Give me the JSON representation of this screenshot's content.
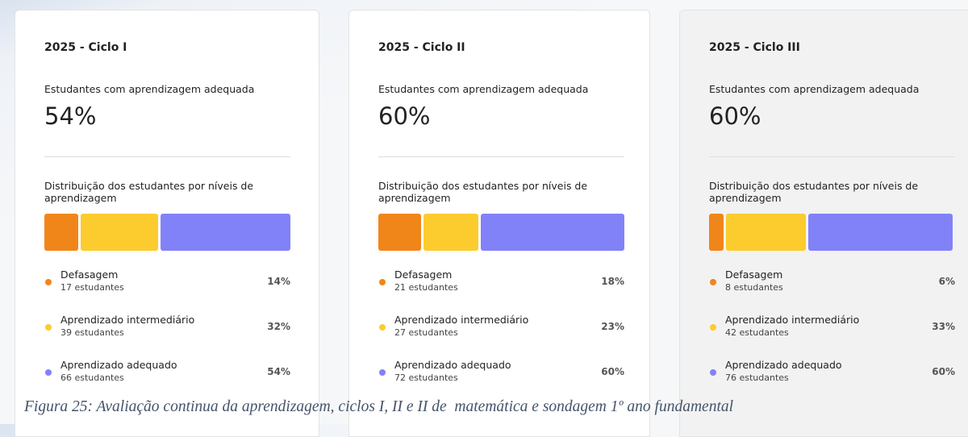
{
  "cards": [
    {
      "title": "2025 - Ciclo I",
      "metric_label": "Estudantes com aprendizagem adequada",
      "metric": "54%",
      "dist_label": "Distribuição dos estudantes por níveis de aprendizagem",
      "levels": [
        {
          "name": "Defasagem",
          "count": "17 estudantes",
          "pct": 14,
          "pct_label": "14%"
        },
        {
          "name": "Aprendizado intermediário",
          "count": "39 estudantes",
          "pct": 32,
          "pct_label": "32%"
        },
        {
          "name": "Aprendizado adequado",
          "count": "66 estudantes",
          "pct": 54,
          "pct_label": "54%"
        }
      ]
    },
    {
      "title": "2025 - Ciclo II",
      "metric_label": "Estudantes com aprendizagem adequada",
      "metric": "60%",
      "dist_label": "Distribuição dos estudantes por níveis de aprendizagem",
      "levels": [
        {
          "name": "Defasagem",
          "count": "21 estudantes",
          "pct": 18,
          "pct_label": "18%"
        },
        {
          "name": "Aprendizado intermediário",
          "count": "27 estudantes",
          "pct": 23,
          "pct_label": "23%"
        },
        {
          "name": "Aprendizado adequado",
          "count": "72 estudantes",
          "pct": 60,
          "pct_label": "60%"
        }
      ]
    },
    {
      "title": "2025 - Ciclo III",
      "metric_label": "Estudantes com aprendizagem adequada",
      "metric": "60%",
      "dist_label": "Distribuição dos estudantes por níveis de aprendizagem",
      "levels": [
        {
          "name": "Defasagem",
          "count": "8 estudantes",
          "pct": 6,
          "pct_label": "6%"
        },
        {
          "name": "Aprendizado intermediário",
          "count": "42 estudantes",
          "pct": 33,
          "pct_label": "33%"
        },
        {
          "name": "Aprendizado adequado",
          "count": "76 estudantes",
          "pct": 60,
          "pct_label": "60%"
        }
      ]
    }
  ],
  "caption": "Figura 25: Avaliação continua da aprendizagem, ciclos I, II e II de  matemática e sondagem 1º ano fundamental"
}
